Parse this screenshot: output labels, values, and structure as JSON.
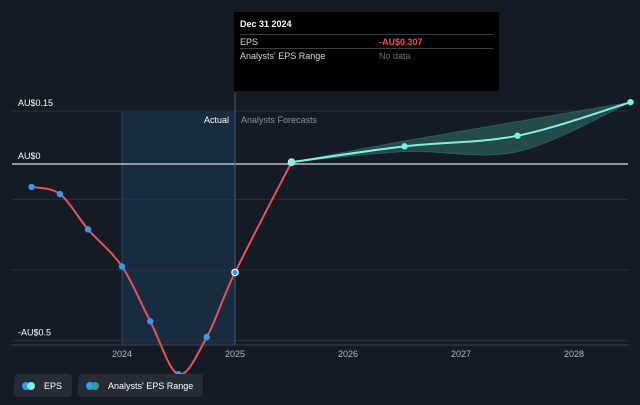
{
  "tooltip": {
    "date": "Dec 31 2024",
    "rows": [
      {
        "label": "EPS",
        "value": "-AU$0.307"
      },
      {
        "label": "Analysts' EPS Range",
        "value": "No data"
      }
    ]
  },
  "legend": {
    "items": [
      {
        "label": "EPS",
        "colors": [
          "#2f9bf5",
          "#7bf2e6"
        ]
      },
      {
        "label": "Analysts' EPS Range",
        "colors": [
          "#2f9bf5",
          "#3d9a8e"
        ]
      }
    ]
  },
  "colors": {
    "background": "#151b24",
    "actual_line": "#e8515a",
    "forecast_line": "#7bf2e6",
    "forecast_range": "#2a5b57",
    "past_marker": "#2f9bf5",
    "forecast_marker": "#7bf2e6",
    "highlight_band": "#1b3a55"
  },
  "chart_data": {
    "type": "line",
    "y_tick_labels": [
      {
        "value": 0.15,
        "label": "AU$0.15"
      },
      {
        "value": 0,
        "label": "AU$0"
      },
      {
        "value": -0.5,
        "label": "-AU$0.5"
      }
    ],
    "x_tick_labels": [
      {
        "value": 2024,
        "label": "2024"
      },
      {
        "value": 2025,
        "label": "2025"
      },
      {
        "value": 2026,
        "label": "2026"
      },
      {
        "value": 2027,
        "label": "2027"
      },
      {
        "value": 2028,
        "label": "2028"
      }
    ],
    "ylim": [
      -0.55,
      0.2
    ],
    "xlim": [
      2023.0,
      2028.5
    ],
    "divider_label_left": "Actual",
    "divider_label_right": "Analysts Forecasts",
    "divider_x": 2025.0,
    "highlight_range": [
      2024.0,
      2025.0
    ],
    "series": [
      {
        "name": "EPS",
        "kind": "actual",
        "points": [
          {
            "x": 2023.2,
            "y": -0.065
          },
          {
            "x": 2023.45,
            "y": -0.085
          },
          {
            "x": 2023.7,
            "y": -0.185
          },
          {
            "x": 2024.0,
            "y": -0.29
          },
          {
            "x": 2024.25,
            "y": -0.445
          },
          {
            "x": 2024.5,
            "y": -0.595
          },
          {
            "x": 2024.75,
            "y": -0.49
          },
          {
            "x": 2025.0,
            "y": -0.307
          },
          {
            "x": 2025.5,
            "y": 0.005
          }
        ],
        "markers": [
          0,
          1,
          2,
          3,
          4,
          5,
          6,
          7,
          8
        ]
      },
      {
        "name": "EPS",
        "kind": "forecast",
        "points": [
          {
            "x": 2025.5,
            "y": 0.005
          },
          {
            "x": 2026.5,
            "y": 0.05
          },
          {
            "x": 2027.5,
            "y": 0.08
          },
          {
            "x": 2028.5,
            "y": 0.175
          }
        ],
        "markers": [
          0,
          1,
          2,
          3
        ]
      }
    ],
    "range": {
      "x": [
        2025.5,
        2026.5,
        2027.5,
        2028.5
      ],
      "low": [
        0.005,
        0.035,
        0.035,
        0.175
      ],
      "high": [
        0.005,
        0.065,
        0.12,
        0.175
      ]
    }
  }
}
